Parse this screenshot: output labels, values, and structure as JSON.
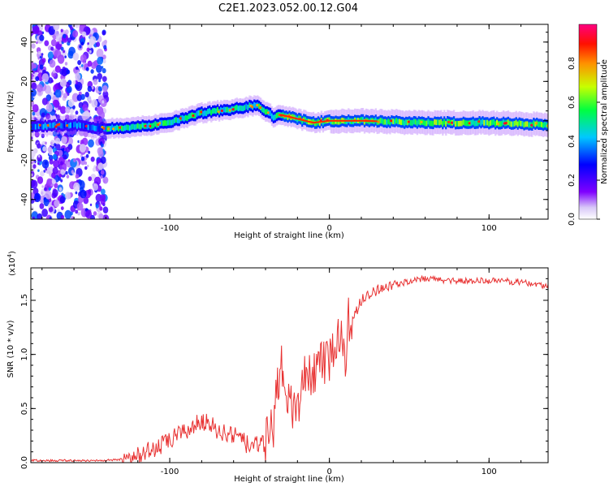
{
  "figure_title": "C2E1.2023.052.00.12.G04",
  "chart_data": [
    {
      "type": "heatmap",
      "title": "C2E1.2023.052.00.12.G04",
      "xlabel": "Height of straight line (km)",
      "ylabel": "Frequency (Hz)",
      "xlim": [
        -187,
        137
      ],
      "ylim": [
        -50,
        49
      ],
      "xticks": [
        -100,
        0,
        100
      ],
      "yticks": [
        -40,
        -20,
        0,
        20,
        40
      ],
      "colorbar": {
        "label": "Normalized spectral amplitude",
        "range": [
          0,
          1
        ],
        "ticks": [
          "0.0",
          "0.2",
          "0.4",
          "0.6",
          "0.8"
        ]
      },
      "ridge": {
        "description": "peak frequency vs height",
        "x": [
          -187,
          -160,
          -140,
          -120,
          -100,
          -80,
          -60,
          -45,
          -35,
          -30,
          -20,
          -10,
          0,
          20,
          60,
          100,
          137
        ],
        "y": [
          -3,
          -2,
          -4,
          -3,
          -1,
          4,
          6,
          8,
          2,
          3,
          1,
          -1,
          0,
          0,
          -1,
          -1,
          -2
        ]
      },
      "noise_region_x": [
        -187,
        -140
      ]
    },
    {
      "type": "line",
      "title": "",
      "xlabel": "Height of straight line (km)",
      "ylabel": "SNR (10 * v/v)",
      "scale_note": "(x10",
      "scale_exp": "4",
      "xlim": [
        -187,
        137
      ],
      "ylim": [
        0,
        1.8
      ],
      "xticks": [
        -100,
        0,
        100
      ],
      "yticks": [
        "0.0",
        "0.5",
        "1.0",
        "1.5"
      ],
      "line_color": "#e83232",
      "series": [
        {
          "name": "SNR",
          "x": [
            -187,
            -160,
            -140,
            -130,
            -120,
            -110,
            -100,
            -90,
            -85,
            -80,
            -70,
            -60,
            -50,
            -40,
            -35,
            -32,
            -30,
            -28,
            -25,
            -20,
            -15,
            -10,
            -5,
            0,
            3,
            5,
            8,
            10,
            12,
            14,
            20,
            30,
            40,
            50,
            60,
            80,
            100,
            120,
            137
          ],
          "values": [
            0.02,
            0.02,
            0.02,
            0.03,
            0.08,
            0.12,
            0.2,
            0.3,
            0.32,
            0.4,
            0.3,
            0.25,
            0.15,
            0.18,
            0.35,
            0.8,
            0.9,
            0.6,
            0.5,
            0.5,
            0.8,
            0.85,
            0.9,
            0.9,
            1.2,
            1.1,
            1.25,
            0.8,
            1.35,
            1.3,
            1.5,
            1.6,
            1.65,
            1.67,
            1.7,
            1.68,
            1.68,
            1.67,
            1.63
          ]
        }
      ]
    }
  ]
}
